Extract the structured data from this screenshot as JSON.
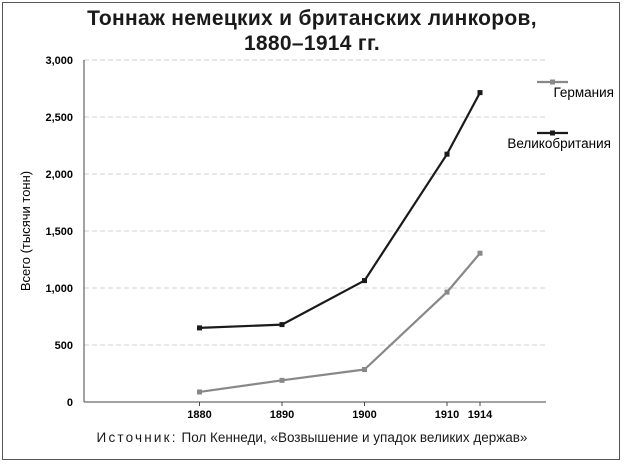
{
  "title_line1": "Тоннаж немецких и британских линкоров,",
  "title_line2": "1880–1914 гг.",
  "source_label": "Источник:",
  "source_text": " Пол Кеннеди, «Возвышение и упадок великих держав»",
  "chart_data": {
    "type": "line",
    "title": "Тоннаж немецких и британских линкоров, 1880–1914 гг.",
    "xlabel": "",
    "ylabel": "Всего (тысячи тонн)",
    "x": [
      1880,
      1890,
      1900,
      1910,
      1914
    ],
    "x_tick_labels": [
      "1880",
      "1890",
      "1900",
      "1910",
      "1914"
    ],
    "xlim": [
      1866,
      1922
    ],
    "ylim": [
      0,
      3000
    ],
    "y_ticks": [
      0,
      500,
      1000,
      1500,
      2000,
      2500,
      3000
    ],
    "y_tick_labels": [
      "0",
      "500",
      "1,000",
      "1,500",
      "2,000",
      "2,500",
      "3,000"
    ],
    "grid": true,
    "legend_position": "right",
    "series": [
      {
        "name": "Германия",
        "color": "#888888",
        "values": [
          88,
          190,
          285,
          964,
          1305
        ]
      },
      {
        "name": "Великобритания",
        "color": "#1a1a1a",
        "values": [
          650,
          679,
          1065,
          2174,
          2714
        ]
      }
    ]
  }
}
